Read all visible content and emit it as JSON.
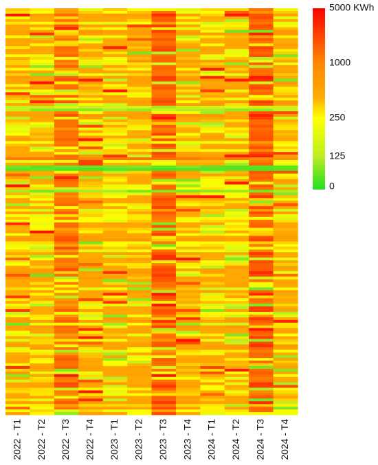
{
  "chart_data": {
    "type": "heatmap",
    "title": "",
    "xlabel": "",
    "ylabel": "",
    "x": [
      "2022 - T1",
      "2022 - T2",
      "2022 - T3",
      "2022 - T4",
      "2023 - T1",
      "2023 - T2",
      "2023 - T3",
      "2023 - T4",
      "2024 - T1",
      "2024 - T2",
      "2024 - T3",
      "2024 - T4"
    ],
    "row_count": 150,
    "row_labels_visible": false,
    "colorscale": {
      "stops": [
        {
          "value": 0,
          "color": "#22dd22"
        },
        {
          "value": 125,
          "color": "#bbee22"
        },
        {
          "value": 250,
          "color": "#ffff00"
        },
        {
          "value": 350,
          "color": "#ffaa00"
        },
        {
          "value": 800,
          "color": "#ff9900"
        },
        {
          "value": 1000,
          "color": "#ff7a00"
        },
        {
          "value": 5000,
          "color": "#ff0000"
        }
      ],
      "legend_ticks": [
        {
          "value": 5000,
          "label": "5000 KWh"
        },
        {
          "value": 1000,
          "label": "1000"
        },
        {
          "value": 250,
          "label": "250"
        },
        {
          "value": 125,
          "label": "125"
        },
        {
          "value": 0,
          "label": "0"
        }
      ]
    },
    "column_profile": {
      "base_value": [
        420,
        400,
        1300,
        420,
        400,
        430,
        1700,
        430,
        400,
        400,
        1900,
        430
      ],
      "variability": [
        0.6,
        0.55,
        0.75,
        0.55,
        0.55,
        0.6,
        0.8,
        0.55,
        0.6,
        0.6,
        0.8,
        0.55
      ]
    },
    "band_rows": [
      {
        "row": 36,
        "value": 150
      },
      {
        "row": 37,
        "value": 120
      },
      {
        "row": 55,
        "value": 1200
      },
      {
        "row": 58,
        "value": 60
      },
      {
        "row": 59,
        "value": 40
      },
      {
        "row": 67,
        "value": 90
      }
    ]
  }
}
